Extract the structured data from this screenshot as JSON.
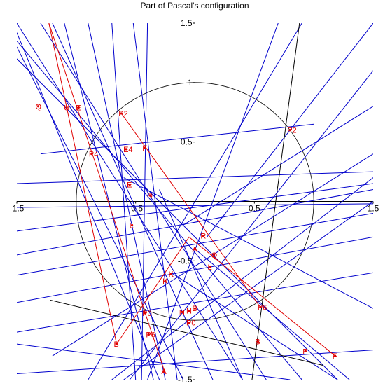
{
  "title": "Part of Pascal's configuration",
  "axes": {
    "x_ticks": [
      "-1.5",
      "-0.5",
      "0.5",
      "1.5"
    ],
    "x_tick_values": [
      -1.5,
      -0.5,
      0.5,
      1.5
    ],
    "y_ticks": [
      "1.5",
      "1",
      "0.5",
      "-0.5",
      "-1.5"
    ],
    "y_tick_values": [
      1.5,
      1,
      0.5,
      -0.5,
      -1.5
    ],
    "xlim": [
      -1.5,
      1.5
    ],
    "ylim": [
      -1.5,
      1.5
    ]
  },
  "colors": {
    "lines": "#0000cc",
    "red": "#e00000",
    "black": "#000000"
  },
  "chart_data": {
    "type": "diagram",
    "circle": {
      "center": [
        0,
        0
      ],
      "radius": 1
    },
    "points": [
      {
        "label": "Q",
        "x": -1.32,
        "y": 0.8
      },
      {
        "label": "U",
        "x": -1.08,
        "y": 0.79
      },
      {
        "label": "E",
        "x": -0.98,
        "y": 0.79
      },
      {
        "label": "P2",
        "x": -0.62,
        "y": 0.74
      },
      {
        "label": "P2",
        "x": 0.8,
        "y": 0.6
      },
      {
        "label": "P4",
        "x": -0.87,
        "y": 0.4
      },
      {
        "label": "E4",
        "x": -0.58,
        "y": 0.44
      },
      {
        "label": "F",
        "x": -0.42,
        "y": 0.45
      },
      {
        "label": "E",
        "x": -0.55,
        "y": 0.14
      },
      {
        "label": "D",
        "x": -0.38,
        "y": 0.05
      },
      {
        "label": "L",
        "x": -0.53,
        "y": -0.2
      },
      {
        "label": "R",
        "x": 0.07,
        "y": -0.29
      },
      {
        "label": "A",
        "x": 0.0,
        "y": -0.4
      },
      {
        "label": "Q",
        "x": 0.16,
        "y": -0.45
      },
      {
        "label": "L",
        "x": 0.13,
        "y": -0.55
      },
      {
        "label": "K",
        "x": -0.2,
        "y": -0.61
      },
      {
        "label": "K",
        "x": -0.25,
        "y": -0.67
      },
      {
        "label": "P6",
        "x": 0.55,
        "y": -0.89
      },
      {
        "label": "P0",
        "x": -0.42,
        "y": -0.94
      },
      {
        "label": "N",
        "x": -0.11,
        "y": -0.93
      },
      {
        "label": "N",
        "x": -0.05,
        "y": -0.92
      },
      {
        "label": "B",
        "x": 0.0,
        "y": -0.9
      },
      {
        "label": "P0",
        "x": -0.05,
        "y": -1.02
      },
      {
        "label": "P6",
        "x": -0.39,
        "y": -1.12
      },
      {
        "label": "B",
        "x": 0.53,
        "y": -1.18
      },
      {
        "label": "B",
        "x": -0.66,
        "y": -1.2
      },
      {
        "label": "F",
        "x": 0.93,
        "y": -1.26
      },
      {
        "label": "F",
        "x": 1.18,
        "y": -1.3
      },
      {
        "label": "A",
        "x": -0.26,
        "y": -1.43
      }
    ],
    "blue_lines": [
      [
        [
          -1.5,
          1.5
        ],
        [
          0.4,
          -1.5
        ]
      ],
      [
        [
          -1.5,
          1.35
        ],
        [
          0.9,
          -1.5
        ]
      ],
      [
        [
          -1.5,
          1.2
        ],
        [
          1.2,
          -1.5
        ]
      ],
      [
        [
          -1.5,
          1.3
        ],
        [
          -0.1,
          -1.5
        ]
      ],
      [
        [
          -1.5,
          1.42
        ],
        [
          -0.3,
          -1.5
        ]
      ],
      [
        [
          -1.2,
          1.5
        ],
        [
          0.15,
          -1.5
        ]
      ],
      [
        [
          -1.1,
          1.5
        ],
        [
          -0.35,
          -1.5
        ]
      ],
      [
        [
          -0.9,
          1.5
        ],
        [
          -0.25,
          -1.5
        ]
      ],
      [
        [
          -0.7,
          1.5
        ],
        [
          -0.5,
          -1.5
        ]
      ],
      [
        [
          -0.4,
          1.5
        ],
        [
          -0.45,
          -1.5
        ]
      ],
      [
        [
          -0.52,
          1.5
        ],
        [
          -0.15,
          -1.5
        ]
      ],
      [
        [
          -1.3,
          1.5
        ],
        [
          0.6,
          -1.5
        ]
      ],
      [
        [
          -1.5,
          0.15
        ],
        [
          1.5,
          0.25
        ]
      ],
      [
        [
          -1.5,
          -0.05
        ],
        [
          1.5,
          -0.02
        ]
      ],
      [
        [
          -1.5,
          -0.25
        ],
        [
          1.5,
          0.15
        ]
      ],
      [
        [
          -1.5,
          -0.45
        ],
        [
          1.5,
          0.1
        ]
      ],
      [
        [
          -1.5,
          -0.62
        ],
        [
          1.5,
          -0.1
        ]
      ],
      [
        [
          -1.5,
          -0.85
        ],
        [
          1.5,
          -0.3
        ]
      ],
      [
        [
          -1.5,
          -1.1
        ],
        [
          1.5,
          -0.6
        ]
      ],
      [
        [
          -1.3,
          0.4
        ],
        [
          1.0,
          0.65
        ]
      ],
      [
        [
          -0.9,
          -1.5
        ],
        [
          0.9,
          1.5
        ]
      ],
      [
        [
          -0.4,
          -1.5
        ],
        [
          0.7,
          1.5
        ]
      ],
      [
        [
          -0.55,
          -1.5
        ],
        [
          1.5,
          1.1
        ]
      ],
      [
        [
          -0.7,
          -1.5
        ],
        [
          1.5,
          0.2
        ]
      ],
      [
        [
          -1.2,
          -1.3
        ],
        [
          1.5,
          0.4
        ]
      ],
      [
        [
          -0.6,
          -1.5
        ],
        [
          1.5,
          0.0
        ]
      ],
      [
        [
          -1.5,
          -1.2
        ],
        [
          0.8,
          -1.5
        ]
      ],
      [
        [
          -1.5,
          -1.45
        ],
        [
          1.5,
          -1.25
        ]
      ],
      [
        [
          0.0,
          -0.4
        ],
        [
          1.3,
          -1.5
        ]
      ],
      [
        [
          -0.2,
          -0.6
        ],
        [
          1.2,
          -1.5
        ]
      ],
      [
        [
          0.1,
          -0.3
        ],
        [
          1.5,
          1.5
        ]
      ],
      [
        [
          -0.6,
          0.2
        ],
        [
          1.5,
          -0.9
        ]
      ],
      [
        [
          -0.3,
          0.1
        ],
        [
          0.4,
          -1.5
        ]
      ],
      [
        [
          -0.1,
          -0.2
        ],
        [
          1.5,
          0.8
        ]
      ]
    ],
    "red_polyline": [
      [
        -1.23,
        1.5
      ],
      [
        -0.66,
        -1.2
      ],
      [
        -0.05,
        -0.3
      ],
      [
        1.18,
        -1.3
      ]
    ],
    "red_extra": [
      [
        [
          -1.23,
          1.5
        ],
        [
          -0.25,
          -1.45
        ]
      ],
      [
        [
          -0.62,
          0.74
        ],
        [
          0.55,
          -0.89
        ]
      ]
    ],
    "black_lines": [
      [
        [
          -1.22,
          -0.83
        ],
        [
          1.08,
          -1.38
        ]
      ],
      [
        [
          0.88,
          1.5
        ],
        [
          0.48,
          -1.5
        ]
      ]
    ]
  }
}
